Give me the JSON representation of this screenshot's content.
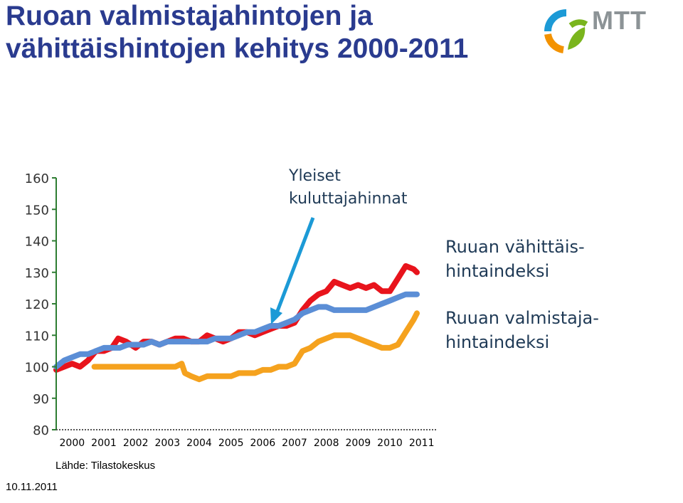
{
  "title": "Ruoan valmistajahintojen ja vähittäishintojen kehitys 2000-2011",
  "logo": {
    "text": "MTT",
    "colors": {
      "blue": "#1c9ad6",
      "orange": "#f39200",
      "green": "#7ab51d"
    }
  },
  "annotations": {
    "general_prices": [
      "Yleiset",
      "kuluttajahinnat"
    ],
    "retail_index": [
      "Ruuan vähittäis-",
      "hintaindeksi"
    ],
    "producer_index": [
      "Ruuan valmistaja-",
      "hintaindeksi"
    ]
  },
  "source": "Lähde: Tilastokeskus",
  "date": "10.11.2011",
  "chart_data": {
    "type": "line",
    "x_categories": [
      "2000",
      "2001",
      "2002",
      "2003",
      "2004",
      "2005",
      "2006",
      "2007",
      "2008",
      "2009",
      "2010",
      "2011"
    ],
    "ylim": [
      80,
      160
    ],
    "yticks": [
      80,
      90,
      100,
      110,
      120,
      130,
      140,
      150,
      160
    ],
    "series": [
      {
        "key": "retail",
        "color": "#e8141c",
        "points": [
          [
            2000.0,
            99
          ],
          [
            2000.25,
            100
          ],
          [
            2000.5,
            101
          ],
          [
            2000.75,
            100
          ],
          [
            2001.0,
            102
          ],
          [
            2001.25,
            105
          ],
          [
            2001.5,
            105
          ],
          [
            2001.75,
            106
          ],
          [
            2001.95,
            109
          ],
          [
            2002.2,
            108
          ],
          [
            2002.5,
            106
          ],
          [
            2002.75,
            108
          ],
          [
            2003.0,
            108
          ],
          [
            2003.25,
            107
          ],
          [
            2003.5,
            108
          ],
          [
            2003.75,
            109
          ],
          [
            2004.0,
            109
          ],
          [
            2004.25,
            108
          ],
          [
            2004.5,
            108
          ],
          [
            2004.75,
            110
          ],
          [
            2005.0,
            109
          ],
          [
            2005.25,
            108
          ],
          [
            2005.5,
            109
          ],
          [
            2005.75,
            111
          ],
          [
            2006.0,
            111
          ],
          [
            2006.25,
            110
          ],
          [
            2006.5,
            111
          ],
          [
            2006.75,
            112
          ],
          [
            2007.0,
            113
          ],
          [
            2007.25,
            113
          ],
          [
            2007.5,
            114
          ],
          [
            2007.75,
            118
          ],
          [
            2008.0,
            121
          ],
          [
            2008.25,
            123
          ],
          [
            2008.5,
            124
          ],
          [
            2008.75,
            127
          ],
          [
            2009.0,
            126
          ],
          [
            2009.25,
            125
          ],
          [
            2009.5,
            126
          ],
          [
            2009.75,
            125
          ],
          [
            2010.0,
            126
          ],
          [
            2010.25,
            124
          ],
          [
            2010.5,
            124
          ],
          [
            2010.75,
            128
          ],
          [
            2011.0,
            132
          ],
          [
            2011.25,
            131
          ],
          [
            2011.35,
            130
          ]
        ]
      },
      {
        "key": "general",
        "color": "#5b8ed6",
        "points": [
          [
            2000.0,
            100
          ],
          [
            2000.25,
            102
          ],
          [
            2000.5,
            103
          ],
          [
            2000.75,
            104
          ],
          [
            2001.0,
            104
          ],
          [
            2001.25,
            105
          ],
          [
            2001.5,
            106
          ],
          [
            2001.75,
            106
          ],
          [
            2002.0,
            106
          ],
          [
            2002.25,
            107
          ],
          [
            2002.5,
            107
          ],
          [
            2002.75,
            107
          ],
          [
            2003.0,
            108
          ],
          [
            2003.25,
            107
          ],
          [
            2003.5,
            108
          ],
          [
            2003.75,
            108
          ],
          [
            2004.0,
            108
          ],
          [
            2004.25,
            108
          ],
          [
            2004.5,
            108
          ],
          [
            2004.75,
            108
          ],
          [
            2005.0,
            109
          ],
          [
            2005.25,
            109
          ],
          [
            2005.5,
            109
          ],
          [
            2005.75,
            110
          ],
          [
            2006.0,
            111
          ],
          [
            2006.25,
            111
          ],
          [
            2006.5,
            112
          ],
          [
            2006.75,
            113
          ],
          [
            2007.0,
            113
          ],
          [
            2007.25,
            114
          ],
          [
            2007.5,
            115
          ],
          [
            2007.75,
            117
          ],
          [
            2008.0,
            118
          ],
          [
            2008.25,
            119
          ],
          [
            2008.5,
            119
          ],
          [
            2008.75,
            118
          ],
          [
            2009.0,
            118
          ],
          [
            2009.25,
            118
          ],
          [
            2009.5,
            118
          ],
          [
            2009.75,
            118
          ],
          [
            2010.0,
            119
          ],
          [
            2010.25,
            120
          ],
          [
            2010.5,
            121
          ],
          [
            2010.75,
            122
          ],
          [
            2011.0,
            123
          ],
          [
            2011.25,
            123
          ],
          [
            2011.35,
            123
          ]
        ]
      },
      {
        "key": "producer",
        "color": "#f5a21e",
        "points": [
          [
            2001.2,
            100
          ],
          [
            2001.5,
            100
          ],
          [
            2001.75,
            100
          ],
          [
            2002.0,
            100
          ],
          [
            2002.25,
            100
          ],
          [
            2002.5,
            100
          ],
          [
            2002.75,
            100
          ],
          [
            2003.0,
            100
          ],
          [
            2003.25,
            100
          ],
          [
            2003.5,
            100
          ],
          [
            2003.75,
            100
          ],
          [
            2003.95,
            101
          ],
          [
            2004.05,
            98
          ],
          [
            2004.25,
            97
          ],
          [
            2004.5,
            96
          ],
          [
            2004.75,
            97
          ],
          [
            2005.0,
            97
          ],
          [
            2005.25,
            97
          ],
          [
            2005.5,
            97
          ],
          [
            2005.75,
            98
          ],
          [
            2006.0,
            98
          ],
          [
            2006.25,
            98
          ],
          [
            2006.5,
            99
          ],
          [
            2006.75,
            99
          ],
          [
            2007.0,
            100
          ],
          [
            2007.25,
            100
          ],
          [
            2007.5,
            101
          ],
          [
            2007.75,
            105
          ],
          [
            2008.0,
            106
          ],
          [
            2008.25,
            108
          ],
          [
            2008.5,
            109
          ],
          [
            2008.75,
            110
          ],
          [
            2009.0,
            110
          ],
          [
            2009.25,
            110
          ],
          [
            2009.5,
            109
          ],
          [
            2009.75,
            108
          ],
          [
            2010.0,
            107
          ],
          [
            2010.25,
            106
          ],
          [
            2010.5,
            106
          ],
          [
            2010.75,
            107
          ],
          [
            2011.0,
            111
          ],
          [
            2011.25,
            115
          ],
          [
            2011.35,
            117
          ]
        ]
      }
    ]
  }
}
